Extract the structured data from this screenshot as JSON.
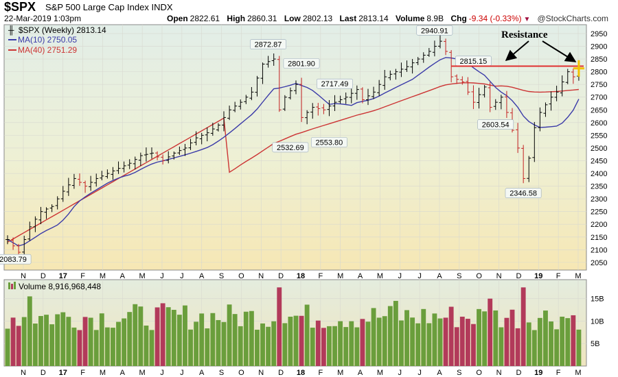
{
  "header": {
    "symbol": "$SPX",
    "name": "S&P 500 Large Cap Index",
    "exchange": "INDX",
    "datetime": "22-Mar-2019 1:03pm",
    "open_label": "Open",
    "open": "2822.61",
    "high_label": "High",
    "high": "2860.31",
    "low_label": "Low",
    "low": "2802.13",
    "last_label": "Last",
    "last": "2813.14",
    "volume_label": "Volume",
    "volume": "8.9B",
    "chg_label": "Chg",
    "chg": "-9.34 (-0.33%)",
    "brand": "@StockCharts.com"
  },
  "chart_data": [
    {
      "type": "ohlc",
      "legend": [
        {
          "text": "$SPX (Weekly) 2813.14",
          "color": "#000000"
        },
        {
          "text": "MA(10) 2750.05",
          "color": "#3a3aa8"
        },
        {
          "text": "MA(40) 2751.29",
          "color": "#cc3333"
        }
      ],
      "x_tick_labels": [
        "N",
        "D",
        "17",
        "F",
        "M",
        "A",
        "M",
        "J",
        "J",
        "A",
        "S",
        "O",
        "N",
        "D",
        "18",
        "F",
        "M",
        "A",
        "M",
        "J",
        "J",
        "A",
        "S",
        "O",
        "N",
        "D",
        "19",
        "F",
        "M"
      ],
      "y_ticks": [
        2050,
        2100,
        2150,
        2200,
        2250,
        2300,
        2350,
        2400,
        2450,
        2500,
        2550,
        2600,
        2650,
        2700,
        2750,
        2800,
        2850,
        2900,
        2950
      ],
      "ylim": [
        2020,
        2985
      ],
      "annotations": [
        "2083.79",
        "2872.87",
        "2801.90",
        "2717.49",
        "2532.69",
        "2553.80",
        "2940.91",
        "2815.15",
        "2603.54",
        "2346.58"
      ],
      "resistance": {
        "label": "Resistance",
        "level": 2822
      },
      "anchors": [
        [
          0,
          2140
        ],
        [
          2,
          2090
        ],
        [
          4,
          2190
        ],
        [
          6,
          2250
        ],
        [
          8,
          2270
        ],
        [
          10,
          2330
        ],
        [
          12,
          2380
        ],
        [
          14,
          2350
        ],
        [
          16,
          2380
        ],
        [
          18,
          2400
        ],
        [
          20,
          2420
        ],
        [
          22,
          2440
        ],
        [
          24,
          2470
        ],
        [
          26,
          2480
        ],
        [
          28,
          2450
        ],
        [
          30,
          2480
        ],
        [
          32,
          2500
        ],
        [
          34,
          2540
        ],
        [
          36,
          2560
        ],
        [
          38,
          2590
        ],
        [
          40,
          2650
        ],
        [
          42,
          2680
        ],
        [
          44,
          2720
        ],
        [
          46,
          2830
        ],
        [
          48,
          2850
        ],
        [
          49,
          2650
        ],
        [
          50,
          2700
        ],
        [
          52,
          2750
        ],
        [
          53,
          2620
        ],
        [
          55,
          2660
        ],
        [
          57,
          2650
        ],
        [
          59,
          2680
        ],
        [
          61,
          2700
        ],
        [
          63,
          2730
        ],
        [
          64,
          2690
        ],
        [
          66,
          2720
        ],
        [
          68,
          2780
        ],
        [
          70,
          2800
        ],
        [
          72,
          2820
        ],
        [
          74,
          2850
        ],
        [
          76,
          2880
        ],
        [
          78,
          2920
        ],
        [
          79,
          2880
        ],
        [
          80,
          2780
        ],
        [
          82,
          2760
        ],
        [
          84,
          2680
        ],
        [
          86,
          2740
        ],
        [
          87,
          2660
        ],
        [
          89,
          2700
        ],
        [
          90,
          2640
        ],
        [
          92,
          2500
        ],
        [
          93,
          2380
        ],
        [
          94,
          2460
        ],
        [
          95,
          2580
        ],
        [
          96,
          2640
        ],
        [
          98,
          2700
        ],
        [
          99,
          2720
        ],
        [
          100,
          2760
        ],
        [
          101,
          2800
        ],
        [
          102,
          2780
        ],
        [
          103,
          2813
        ]
      ]
    },
    {
      "type": "bar",
      "legend": "Volume 8,916,968,448",
      "y_ticks": [
        "5B",
        "10B",
        "15B"
      ],
      "ylim": [
        0,
        18
      ]
    }
  ]
}
